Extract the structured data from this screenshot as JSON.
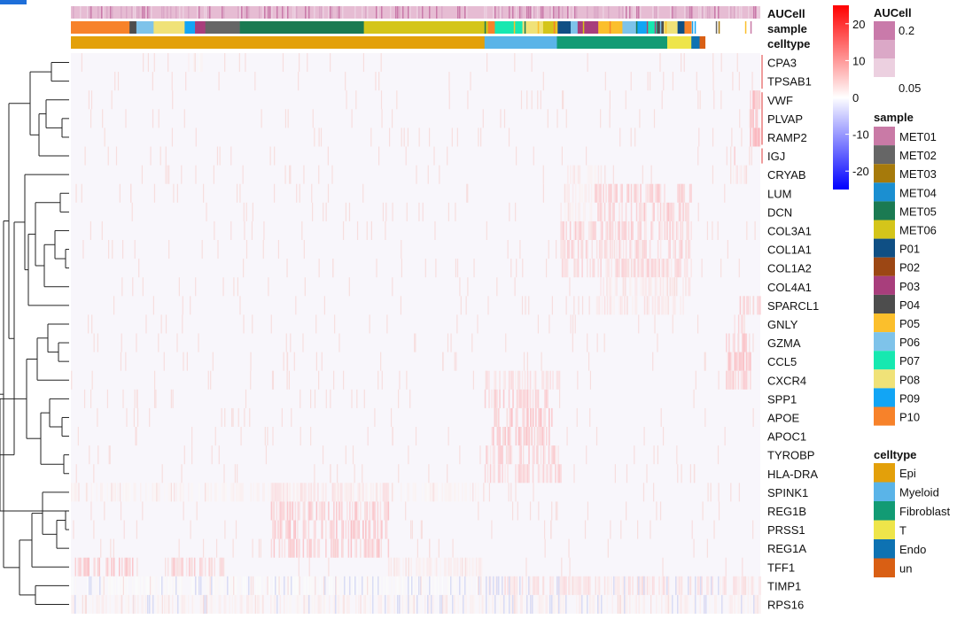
{
  "chart_data": {
    "type": "heatmap",
    "annotation_rows": [
      "AUCell",
      "sample",
      "celltype"
    ],
    "genes": [
      "CPA3",
      "TPSAB1",
      "VWF",
      "PLVAP",
      "RAMP2",
      "IGJ",
      "CRYAB",
      "LUM",
      "DCN",
      "COL3A1",
      "COL1A1",
      "COL1A2",
      "COL4A1",
      "SPARCL1",
      "GNLY",
      "GZMA",
      "CCL5",
      "CXCR4",
      "SPP1",
      "APOE",
      "APOC1",
      "TYROBP",
      "HLA-DRA",
      "SPINK1",
      "REG1B",
      "PRSS1",
      "REG1A",
      "TFF1",
      "TIMP1",
      "RPS16"
    ],
    "celltype_blocks": [
      {
        "name": "Epi",
        "frac": 0.6
      },
      {
        "name": "Myeloid",
        "frac": 0.105
      },
      {
        "name": "Fibroblast",
        "frac": 0.16
      },
      {
        "name": "T",
        "frac": 0.035
      },
      {
        "name": "Endo",
        "frac": 0.012
      },
      {
        "name": "un",
        "frac": 0.008
      }
    ],
    "sample_blocks": [
      {
        "name": "P10",
        "frac": 0.085
      },
      {
        "name": "P04",
        "frac": 0.01
      },
      {
        "name": "P06",
        "frac": 0.025
      },
      {
        "name": "P08",
        "frac": 0.045
      },
      {
        "name": "P09",
        "frac": 0.015
      },
      {
        "name": "P03",
        "frac": 0.015
      },
      {
        "name": "MET02",
        "frac": 0.05
      },
      {
        "name": "MET05",
        "frac": 0.18
      },
      {
        "name": "MET06",
        "frac": 0.18
      },
      {
        "name": "P10",
        "frac": 0.01
      },
      {
        "name": "P07",
        "frac": 0.04
      },
      {
        "name": "P08",
        "frac": 0.03
      },
      {
        "name": "MET06",
        "frac": 0.02
      },
      {
        "name": "P01",
        "frac": 0.02
      },
      {
        "name": "P06",
        "frac": 0.01
      },
      {
        "name": "P03",
        "frac": 0.03
      },
      {
        "name": "P05",
        "frac": 0.035
      },
      {
        "name": "P06",
        "frac": 0.02
      },
      {
        "name": "P09",
        "frac": 0.015
      },
      {
        "name": "P07",
        "frac": 0.015
      },
      {
        "name": "P04",
        "frac": 0.01
      },
      {
        "name": "P08",
        "frac": 0.02
      },
      {
        "name": "P01",
        "frac": 0.01
      },
      {
        "name": "P10",
        "frac": 0.01
      }
    ],
    "expression_blocks": [
      {
        "gene": "CPA3",
        "ranges": [
          [
            0.17,
            0.19,
            0.15
          ]
        ]
      },
      {
        "gene": "VWF",
        "ranges": [
          [
            0.985,
            1.0,
            0.8
          ]
        ]
      },
      {
        "gene": "PLVAP",
        "ranges": [
          [
            0.985,
            1.0,
            0.8
          ]
        ]
      },
      {
        "gene": "RAMP2",
        "ranges": [
          [
            0.985,
            1.0,
            0.8
          ]
        ]
      },
      {
        "gene": "IGJ",
        "ranges": [
          [
            0.96,
            0.965,
            0.6
          ]
        ]
      },
      {
        "gene": "CRYAB",
        "ranges": [
          [
            0.72,
            0.77,
            0.25
          ],
          [
            0.96,
            0.98,
            0.3
          ]
        ]
      },
      {
        "gene": "LUM",
        "ranges": [
          [
            0.76,
            0.9,
            0.55
          ],
          [
            0.71,
            0.76,
            0.2
          ]
        ]
      },
      {
        "gene": "DCN",
        "ranges": [
          [
            0.76,
            0.9,
            0.55
          ],
          [
            0.71,
            0.76,
            0.2
          ]
        ]
      },
      {
        "gene": "COL3A1",
        "ranges": [
          [
            0.71,
            0.9,
            0.5
          ]
        ]
      },
      {
        "gene": "COL1A1",
        "ranges": [
          [
            0.71,
            0.9,
            0.45
          ]
        ]
      },
      {
        "gene": "COL1A2",
        "ranges": [
          [
            0.71,
            0.9,
            0.45
          ]
        ]
      },
      {
        "gene": "COL4A1",
        "ranges": [
          [
            0.76,
            0.9,
            0.25
          ]
        ]
      },
      {
        "gene": "SPARCL1",
        "ranges": [
          [
            0.76,
            0.9,
            0.3
          ],
          [
            0.97,
            1.0,
            0.5
          ]
        ]
      },
      {
        "gene": "GNLY",
        "ranges": [
          [
            0.96,
            0.985,
            0.55
          ]
        ]
      },
      {
        "gene": "GZMA",
        "ranges": [
          [
            0.95,
            0.985,
            0.6
          ]
        ]
      },
      {
        "gene": "CCL5",
        "ranges": [
          [
            0.95,
            0.985,
            0.65
          ]
        ]
      },
      {
        "gene": "CXCR4",
        "ranges": [
          [
            0.6,
            0.71,
            0.35
          ],
          [
            0.95,
            0.985,
            0.5
          ]
        ]
      },
      {
        "gene": "SPP1",
        "ranges": [
          [
            0.6,
            0.7,
            0.5
          ]
        ]
      },
      {
        "gene": "APOE",
        "ranges": [
          [
            0.61,
            0.7,
            0.6
          ]
        ]
      },
      {
        "gene": "APOC1",
        "ranges": [
          [
            0.61,
            0.7,
            0.55
          ]
        ]
      },
      {
        "gene": "TYROBP",
        "ranges": [
          [
            0.6,
            0.71,
            0.5
          ]
        ]
      },
      {
        "gene": "HLA-DRA",
        "ranges": [
          [
            0.6,
            0.71,
            0.45
          ]
        ]
      },
      {
        "gene": "SPINK1",
        "ranges": [
          [
            0.0,
            0.6,
            0.15
          ],
          [
            0.29,
            0.46,
            0.3
          ]
        ]
      },
      {
        "gene": "REG1B",
        "ranges": [
          [
            0.29,
            0.46,
            0.55
          ]
        ]
      },
      {
        "gene": "PRSS1",
        "ranges": [
          [
            0.29,
            0.46,
            0.6
          ]
        ]
      },
      {
        "gene": "REG1A",
        "ranges": [
          [
            0.29,
            0.46,
            0.55
          ]
        ]
      },
      {
        "gene": "TFF1",
        "ranges": [
          [
            0.0,
            0.09,
            0.55
          ],
          [
            0.14,
            0.22,
            0.5
          ],
          [
            0.46,
            0.6,
            0.2
          ]
        ]
      },
      {
        "gene": "TIMP1",
        "ranges": [
          [
            0.6,
            1.0,
            0.35
          ],
          [
            0.0,
            0.6,
            0.08
          ]
        ]
      },
      {
        "gene": "RPS16",
        "ranges": [
          [
            0.0,
            1.0,
            0.18
          ]
        ]
      }
    ],
    "color_scale": {
      "ticks": [
        20,
        10,
        0,
        -10,
        -20
      ],
      "min": -25,
      "max": 25,
      "low_color": "#0000ff",
      "mid_color": "#ffffff",
      "high_color": "#ff0000"
    }
  },
  "legend": {
    "scale_ticks": [
      "20",
      "10",
      "0",
      "-10",
      "-20"
    ],
    "aucell": {
      "title": "AUCell",
      "labels": [
        "0.2",
        "0.05"
      ],
      "colors": [
        "#c97aaa",
        "#dba8c7",
        "#ecd0e0"
      ]
    },
    "sample": {
      "title": "sample",
      "items": [
        {
          "name": "MET01",
          "color": "#c97aa6"
        },
        {
          "name": "MET02",
          "color": "#666666"
        },
        {
          "name": "MET03",
          "color": "#a67a0b"
        },
        {
          "name": "MET04",
          "color": "#1b8fd1"
        },
        {
          "name": "MET05",
          "color": "#1b7a52"
        },
        {
          "name": "MET06",
          "color": "#d4c51a"
        },
        {
          "name": "P01",
          "color": "#0f4f84"
        },
        {
          "name": "P02",
          "color": "#9c4714"
        },
        {
          "name": "P03",
          "color": "#a83e7c"
        },
        {
          "name": "P04",
          "color": "#4d4d4d"
        },
        {
          "name": "P05",
          "color": "#fbbf2c"
        },
        {
          "name": "P06",
          "color": "#7ec3ea"
        },
        {
          "name": "P07",
          "color": "#17e8b0"
        },
        {
          "name": "P08",
          "color": "#f0e278"
        },
        {
          "name": "P09",
          "color": "#12a5f5"
        },
        {
          "name": "P10",
          "color": "#f7822a"
        }
      ]
    },
    "celltype": {
      "title": "celltype",
      "items": [
        {
          "name": "Epi",
          "color": "#e3a00a"
        },
        {
          "name": "Myeloid",
          "color": "#5ab4e8"
        },
        {
          "name": "Fibroblast",
          "color": "#129b74"
        },
        {
          "name": "T",
          "color": "#eee54a"
        },
        {
          "name": "Endo",
          "color": "#0e72b2"
        },
        {
          "name": "un",
          "color": "#d95f14"
        }
      ]
    }
  }
}
